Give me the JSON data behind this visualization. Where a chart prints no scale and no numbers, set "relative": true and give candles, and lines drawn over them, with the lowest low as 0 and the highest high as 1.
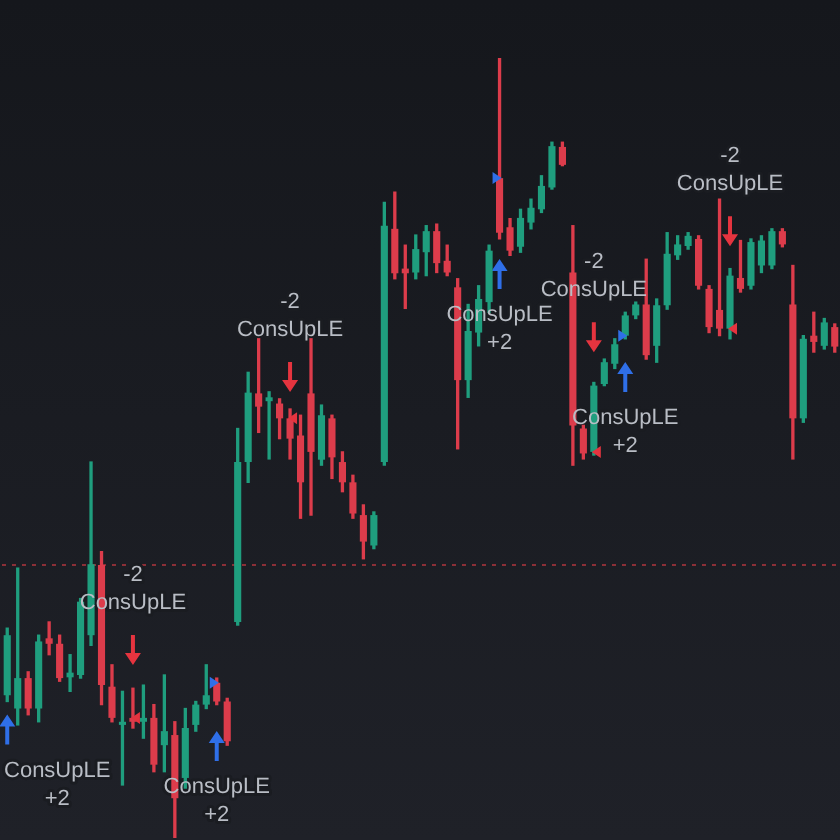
{
  "chart_data": {
    "type": "candlestick",
    "relative": true,
    "categories": [
      null,
      null,
      null,
      null,
      null,
      null,
      null,
      null,
      null,
      null,
      null,
      null,
      null,
      null,
      null,
      null,
      null,
      null,
      null,
      null,
      null,
      null,
      null,
      null,
      null,
      null,
      null,
      null,
      null,
      null,
      null,
      null,
      null,
      null,
      null,
      null,
      null,
      null,
      null,
      null,
      null,
      null,
      null,
      null,
      null,
      null,
      null,
      null,
      null,
      null,
      null,
      null,
      null,
      null,
      null,
      null,
      null,
      null,
      null,
      null,
      null,
      null,
      null,
      null,
      null,
      null,
      null,
      null,
      null,
      null,
      null,
      null,
      null,
      null,
      null,
      null,
      null,
      null,
      null,
      null
    ],
    "ohlc": [
      [
        0.183,
        0.269,
        0.175,
        0.26
      ],
      [
        0.166,
        0.346,
        0.145,
        0.205
      ],
      [
        0.205,
        0.213,
        0.158,
        0.166
      ],
      [
        0.166,
        0.26,
        0.149,
        0.252
      ],
      [
        0.256,
        0.277,
        0.235,
        0.249
      ],
      [
        0.249,
        0.26,
        0.201,
        0.205
      ],
      [
        0.206,
        0.235,
        0.188,
        0.212
      ],
      [
        0.209,
        0.307,
        0.205,
        0.303
      ],
      [
        0.26,
        0.482,
        0.247,
        0.351
      ],
      [
        0.35,
        0.367,
        0.171,
        0.196
      ],
      [
        0.194,
        0.222,
        0.149,
        0.154
      ],
      [
        0.145,
        0.188,
        0.068,
        0.149
      ],
      [
        0.154,
        0.192,
        0.141,
        0.149
      ],
      [
        0.149,
        0.196,
        0.128,
        0.154
      ],
      [
        0.154,
        0.171,
        0.085,
        0.094
      ],
      [
        0.119,
        0.209,
        0.085,
        0.137
      ],
      [
        0.132,
        0.149,
        0,
        0.051
      ],
      [
        0.077,
        0.166,
        0.064,
        0.141
      ],
      [
        0.145,
        0.175,
        0.137,
        0.171
      ],
      [
        0.171,
        0.222,
        0.166,
        0.183
      ],
      [
        0.199,
        0.205,
        0.171,
        0.175
      ],
      [
        0.175,
        0.179,
        0.119,
        0.124
      ],
      [
        0.277,
        0.525,
        0.273,
        0.482
      ],
      [
        0.482,
        0.597,
        0.456,
        0.571
      ],
      [
        0.57,
        0.64,
        0.52,
        0.553
      ],
      [
        0.56,
        0.572,
        0.486,
        0.565
      ],
      [
        0.557,
        0.563,
        0.512,
        0.538
      ],
      [
        0.538,
        0.55,
        0.486,
        0.512
      ],
      [
        0.516,
        0.542,
        0.41,
        0.456
      ],
      [
        0.57,
        0.64,
        0.414,
        0.495
      ],
      [
        0.485,
        0.555,
        0.478,
        0.542
      ],
      [
        0.538,
        0.542,
        0.461,
        0.488
      ],
      [
        0.482,
        0.495,
        0.444,
        0.456
      ],
      [
        0.456,
        0.465,
        0.41,
        0.416
      ],
      [
        0.414,
        0.427,
        0.358,
        0.38
      ],
      [
        0.375,
        0.418,
        0.371,
        0.414
      ],
      [
        0.482,
        0.815,
        0.478,
        0.785
      ],
      [
        0.781,
        0.828,
        0.717,
        0.724
      ],
      [
        0.73,
        0.76,
        0.679,
        0.724
      ],
      [
        0.725,
        0.773,
        0.717,
        0.755
      ],
      [
        0.751,
        0.785,
        0.721,
        0.778
      ],
      [
        0.778,
        0.787,
        0.725,
        0.737
      ],
      [
        0.74,
        0.76,
        0.721,
        0.725
      ],
      [
        0.706,
        0.717,
        0.499,
        0.587
      ],
      [
        0.587,
        0.684,
        0.565,
        0.65
      ],
      [
        0.648,
        0.708,
        0.631,
        0.691
      ],
      [
        0.687,
        0.76,
        0.674,
        0.753
      ],
      [
        0.846,
        1,
        0.768,
        0.776
      ],
      [
        0.783,
        0.794,
        0.747,
        0.753
      ],
      [
        0.758,
        0.806,
        0.751,
        0.795
      ],
      [
        0.789,
        0.819,
        0.781,
        0.808
      ],
      [
        0.806,
        0.849,
        0.802,
        0.836
      ],
      [
        0.834,
        0.892,
        0.832,
        0.887
      ],
      [
        0.886,
        0.892,
        0.862,
        0.863
      ],
      [
        0.725,
        0.785,
        0.478,
        0.529
      ],
      [
        0.525,
        0.529,
        0.486,
        0.493
      ],
      [
        0.495,
        0.584,
        0.491,
        0.58
      ],
      [
        0.582,
        0.614,
        0.58,
        0.61
      ],
      [
        0.608,
        0.64,
        0.602,
        0.633
      ],
      [
        0.644,
        0.674,
        0.64,
        0.67
      ],
      [
        0.67,
        0.687,
        0.666,
        0.684
      ],
      [
        0.684,
        0.742,
        0.614,
        0.619
      ],
      [
        0.631,
        0.691,
        0.61,
        0.683
      ],
      [
        0.683,
        0.776,
        0.678,
        0.749
      ],
      [
        0.747,
        0.772,
        0.742,
        0.761
      ],
      [
        0.759,
        0.776,
        0.755,
        0.772
      ],
      [
        0.768,
        0.772,
        0.704,
        0.708
      ],
      [
        0.704,
        0.708,
        0.648,
        0.655
      ],
      [
        0.677,
        0.819,
        0.644,
        0.653
      ],
      [
        0.653,
        0.73,
        0.64,
        0.721
      ],
      [
        0.718,
        0.766,
        0.7,
        0.704
      ],
      [
        0.708,
        0.768,
        0.704,
        0.764
      ],
      [
        0.734,
        0.772,
        0.725,
        0.766
      ],
      [
        0.734,
        0.781,
        0.73,
        0.778
      ],
      [
        0.778,
        0.781,
        0.758,
        0.761
      ],
      [
        0.684,
        0.734,
        0.486,
        0.538
      ],
      [
        0.538,
        0.644,
        0.533,
        0.64
      ],
      [
        0.644,
        0.674,
        0.623,
        0.636
      ],
      [
        0.631,
        0.666,
        0.627,
        0.661
      ],
      [
        0.655,
        0.659,
        0.623,
        0.63
      ]
    ],
    "colors": [
      "#1f9e7e",
      "#1f9e7e",
      "#dc3c4b",
      "#1f9e7e",
      "#dc3c4b",
      "#dc3c4b",
      "#1f9e7e",
      "#1f9e7e",
      "#1f9e7e",
      "#dc3c4b",
      "#dc3c4b",
      "#1f9e7e",
      "#dc3c4b",
      "#1f9e7e",
      "#dc3c4b",
      "#1f9e7e",
      "#dc3c4b",
      "#1f9e7e",
      "#1f9e7e",
      "#1f9e7e",
      "#dc3c4b",
      "#dc3c4b",
      "#1f9e7e",
      "#1f9e7e",
      "#dc3c4b",
      "#1f9e7e",
      "#dc3c4b",
      "#dc3c4b",
      "#dc3c4b",
      "#dc3c4b",
      "#1f9e7e",
      "#dc3c4b",
      "#dc3c4b",
      "#dc3c4b",
      "#dc3c4b",
      "#1f9e7e",
      "#1f9e7e",
      "#dc3c4b",
      "#dc3c4b",
      "#1f9e7e",
      "#1f9e7e",
      "#dc3c4b",
      "#dc3c4b",
      "#dc3c4b",
      "#1f9e7e",
      "#1f9e7e",
      "#1f9e7e",
      "#dc3c4b",
      "#dc3c4b",
      "#1f9e7e",
      "#1f9e7e",
      "#1f9e7e",
      "#1f9e7e",
      "#dc3c4b",
      "#dc3c4b",
      "#dc3c4b",
      "#1f9e7e",
      "#1f9e7e",
      "#1f9e7e",
      "#1f9e7e",
      "#1f9e7e",
      "#dc3c4b",
      "#1f9e7e",
      "#1f9e7e",
      "#1f9e7e",
      "#1f9e7e",
      "#dc3c4b",
      "#dc3c4b",
      "#dc3c4b",
      "#1f9e7e",
      "#dc3c4b",
      "#1f9e7e",
      "#1f9e7e",
      "#1f9e7e",
      "#dc3c4b",
      "#dc3c4b",
      "#1f9e7e",
      "#dc3c4b",
      "#1f9e7e",
      "#dc3c4b"
    ],
    "series": [
      {
        "type": "scatter",
        "color": "#e5343f",
        "values": [
          null,
          null,
          null,
          null,
          null,
          null,
          null,
          null,
          null,
          null,
          null,
          null,
          0.241,
          null,
          null,
          null,
          null,
          null,
          null,
          null,
          null,
          null,
          null,
          null,
          null,
          null,
          null,
          0.591,
          null,
          null,
          null,
          null,
          null,
          null,
          null,
          null,
          null,
          null,
          null,
          null,
          null,
          null,
          null,
          null,
          null,
          null,
          null,
          null,
          null,
          null,
          null,
          null,
          null,
          null,
          null,
          null,
          0.642,
          null,
          null,
          null,
          null,
          null,
          null,
          null,
          null,
          null,
          null,
          null,
          null,
          0.778,
          null,
          null,
          null,
          null,
          null,
          null,
          null,
          null,
          null,
          null
        ]
      },
      {
        "type": "scatter",
        "color": "#2f6fe8",
        "values": [
          0.139,
          null,
          null,
          null,
          null,
          null,
          null,
          null,
          null,
          null,
          null,
          null,
          null,
          null,
          null,
          null,
          null,
          null,
          null,
          null,
          0.118,
          null,
          null,
          null,
          null,
          null,
          null,
          null,
          null,
          null,
          null,
          null,
          null,
          null,
          null,
          null,
          null,
          null,
          null,
          null,
          null,
          null,
          null,
          null,
          null,
          null,
          null,
          0.723,
          null,
          null,
          null,
          null,
          null,
          null,
          null,
          null,
          null,
          null,
          null,
          0.591,
          null,
          null,
          null,
          null,
          null,
          null,
          null,
          null,
          null,
          null,
          null,
          null,
          null,
          null,
          null,
          null,
          null,
          null,
          null,
          null
        ]
      },
      {
        "type": "scatter",
        "color": "#e5343f",
        "marker": "triangle",
        "values": [
          null,
          null,
          null,
          null,
          null,
          null,
          null,
          null,
          null,
          null,
          null,
          null,
          0.154,
          null,
          null,
          null,
          null,
          null,
          null,
          null,
          null,
          null,
          null,
          null,
          null,
          null,
          null,
          0.538,
          null,
          null,
          null,
          null,
          null,
          null,
          null,
          null,
          null,
          null,
          null,
          null,
          null,
          null,
          null,
          null,
          null,
          null,
          null,
          null,
          null,
          null,
          null,
          null,
          null,
          null,
          null,
          null,
          0.495,
          null,
          null,
          null,
          null,
          null,
          null,
          null,
          null,
          null,
          null,
          null,
          null,
          0.653,
          null,
          null,
          null,
          null,
          null,
          null,
          null,
          null,
          null,
          null
        ]
      },
      {
        "type": "scatter",
        "color": "#2f6fe8",
        "marker": "triangle",
        "values": [
          null,
          null,
          null,
          null,
          null,
          null,
          null,
          null,
          null,
          null,
          null,
          null,
          null,
          null,
          null,
          null,
          null,
          null,
          null,
          null,
          0.199,
          null,
          null,
          null,
          null,
          null,
          null,
          null,
          null,
          null,
          null,
          null,
          null,
          null,
          null,
          null,
          null,
          null,
          null,
          null,
          null,
          null,
          null,
          null,
          null,
          null,
          null,
          0.846,
          null,
          null,
          null,
          null,
          null,
          null,
          null,
          null,
          null,
          null,
          null,
          0.644,
          null,
          null,
          null,
          null,
          null,
          null,
          null,
          null,
          null,
          null,
          null,
          null,
          null,
          null,
          null,
          null,
          null,
          null,
          null,
          null
        ]
      }
    ],
    "annotations": [
      "-2\nConsUpLE",
      "-2\nConsUpLE",
      "-2\nConsUpLE",
      "-2\nConsUpLE",
      "ConsUpLE\n+2",
      "ConsUpLE\n+2",
      "ConsUpLE\n+2",
      "ConsUpLE\n+2"
    ],
    "ref_lines": [
      {
        "axis": "y",
        "value": 0.35,
        "color": "#8c2f37",
        "line_style": "dotted"
      }
    ]
  }
}
